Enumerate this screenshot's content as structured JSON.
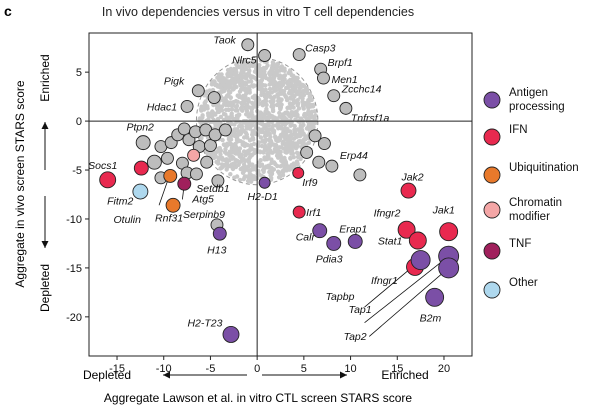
{
  "panel_letter": "c",
  "chart_data": {
    "type": "scatter",
    "title": "In vivo dependencies versus in vitro T cell dependencies",
    "xlabel": "Aggregate Lawson et al. in vitro CTL screen STARS score",
    "ylabel": "Aggregate in vivo screen STARS score",
    "xlim": [
      -18,
      23
    ],
    "ylim": [
      -24,
      9
    ],
    "xticks": [
      -15,
      -10,
      -5,
      0,
      5,
      10,
      15,
      20
    ],
    "yticks": [
      5,
      0,
      -5,
      -10,
      -15,
      -20
    ],
    "x_direction_labels": {
      "left": "Depleted",
      "right": "Enriched"
    },
    "y_direction_labels": {
      "top": "Enriched",
      "bottom": "Depleted"
    },
    "categories": [
      {
        "key": "antigen",
        "label": "Antigen processing",
        "color": "#7B4FA6"
      },
      {
        "key": "ifn",
        "label": "IFN",
        "color": "#E8294F"
      },
      {
        "key": "ubiq",
        "label": "Ubiquitination",
        "color": "#E8792B"
      },
      {
        "key": "chromatin",
        "label": "Chromatin modifier",
        "color": "#F4A6A6"
      },
      {
        "key": "tnf",
        "label": "TNF",
        "color": "#A0205C"
      },
      {
        "key": "other",
        "label": "Other",
        "color": "#AED8EE"
      }
    ],
    "neutral_color": "#BDBDBD",
    "points": [
      {
        "label": "Taok",
        "x": -1,
        "y": 7.8,
        "cat": "none",
        "size": 12
      },
      {
        "label": "Nlrc5",
        "x": 0.8,
        "y": 6.7,
        "cat": "none",
        "size": 12
      },
      {
        "label": "Casp3",
        "x": 4.5,
        "y": 6.8,
        "cat": "none",
        "size": 12
      },
      {
        "label": "Brpf1",
        "x": 6.8,
        "y": 5.3,
        "cat": "none",
        "size": 12
      },
      {
        "label": "Men1",
        "x": 7.1,
        "y": 4.4,
        "cat": "none",
        "size": 12
      },
      {
        "label": "Zcchc14",
        "x": 8.2,
        "y": 2.6,
        "cat": "none",
        "size": 12
      },
      {
        "label": "Tnfrsf1a",
        "x": 9.5,
        "y": 1.3,
        "cat": "none",
        "size": 12
      },
      {
        "label": "Pigk",
        "x": -6.3,
        "y": 3.1,
        "cat": "none",
        "size": 12
      },
      {
        "label": "Hdac1",
        "x": -7.5,
        "y": 1.5,
        "cat": "none",
        "size": 12
      },
      {
        "label": "",
        "x": -4.6,
        "y": 2.4,
        "cat": "none",
        "size": 12
      },
      {
        "label": "Ptpn2",
        "x": -12.2,
        "y": -2.2,
        "cat": "none",
        "size": 14
      },
      {
        "label": "Socs1",
        "x": -12.4,
        "y": -4.8,
        "cat": "ifn",
        "size": 14
      },
      {
        "label": "",
        "x": -16,
        "y": -6,
        "cat": "ifn",
        "size": 16
      },
      {
        "label": "",
        "x": -11,
        "y": -4.2,
        "cat": "none",
        "size": 14
      },
      {
        "label": "",
        "x": -10.3,
        "y": -2.6,
        "cat": "none",
        "size": 12
      },
      {
        "label": "",
        "x": -9.6,
        "y": -3.8,
        "cat": "none",
        "size": 12
      },
      {
        "label": "",
        "x": -9.2,
        "y": -2.2,
        "cat": "none",
        "size": 12
      },
      {
        "label": "",
        "x": -8.5,
        "y": -1.4,
        "cat": "none",
        "size": 12
      },
      {
        "label": "",
        "x": -7.8,
        "y": -0.8,
        "cat": "none",
        "size": 12
      },
      {
        "label": "",
        "x": -7.3,
        "y": -1.9,
        "cat": "none",
        "size": 12
      },
      {
        "label": "",
        "x": -6.6,
        "y": -1.1,
        "cat": "none",
        "size": 12
      },
      {
        "label": "",
        "x": -6.2,
        "y": -2.6,
        "cat": "none",
        "size": 12
      },
      {
        "label": "",
        "x": -5.5,
        "y": -0.9,
        "cat": "none",
        "size": 12
      },
      {
        "label": "",
        "x": -5,
        "y": -2.5,
        "cat": "none",
        "size": 12
      },
      {
        "label": "",
        "x": -4.5,
        "y": -1.4,
        "cat": "none",
        "size": 12
      },
      {
        "label": "",
        "x": -3.4,
        "y": -0.9,
        "cat": "none",
        "size": 12
      },
      {
        "label": "",
        "x": -8,
        "y": -4.3,
        "cat": "none",
        "size": 12
      },
      {
        "label": "",
        "x": -6.8,
        "y": -3.5,
        "cat": "chromatin",
        "size": 12
      },
      {
        "label": "",
        "x": -7.5,
        "y": -5.3,
        "cat": "none",
        "size": 12
      },
      {
        "label": "",
        "x": -6.5,
        "y": -5.4,
        "cat": "none",
        "size": 12
      },
      {
        "label": "Setdb1",
        "x": -4.2,
        "y": -6.1,
        "cat": "none",
        "size": 12
      },
      {
        "label": "",
        "x": -5.4,
        "y": -4.2,
        "cat": "none",
        "size": 12
      },
      {
        "label": "Fitm2",
        "x": -12.5,
        "y": -7.2,
        "cat": "other",
        "size": 15
      },
      {
        "label": "Otulin",
        "x": -10.3,
        "y": -5.8,
        "cat": "none",
        "size": 12
      },
      {
        "label": "",
        "x": -9.3,
        "y": -5.6,
        "cat": "ubiq",
        "size": 13
      },
      {
        "label": "Rnf31",
        "x": -9,
        "y": -8.6,
        "cat": "ubiq",
        "size": 14
      },
      {
        "label": "Atg5",
        "x": -7.8,
        "y": -6.4,
        "cat": "tnf",
        "size": 13
      },
      {
        "label": "Serpinb9",
        "x": -4.3,
        "y": -10.6,
        "cat": "none",
        "size": 12
      },
      {
        "label": "H13",
        "x": -4,
        "y": -11.5,
        "cat": "antigen",
        "size": 13
      },
      {
        "label": "H2-T23",
        "x": -2.8,
        "y": -21.8,
        "cat": "antigen",
        "size": 16
      },
      {
        "label": "H2-D1",
        "x": 0.8,
        "y": -6.3,
        "cat": "antigen",
        "size": 11
      },
      {
        "label": "Irf9",
        "x": 4.4,
        "y": -5.3,
        "cat": "ifn",
        "size": 11
      },
      {
        "label": "Irf1",
        "x": 4.5,
        "y": -9.3,
        "cat": "ifn",
        "size": 12
      },
      {
        "label": "Erp44",
        "x": 11,
        "y": -5.5,
        "cat": "none",
        "size": 12
      },
      {
        "label": "",
        "x": 6.2,
        "y": -1.5,
        "cat": "none",
        "size": 12
      },
      {
        "label": "",
        "x": 7.2,
        "y": -2.3,
        "cat": "none",
        "size": 12
      },
      {
        "label": "",
        "x": 6.6,
        "y": -4.2,
        "cat": "none",
        "size": 12
      },
      {
        "label": "",
        "x": 8,
        "y": -4.6,
        "cat": "none",
        "size": 12
      },
      {
        "label": "",
        "x": 5.3,
        "y": -3.2,
        "cat": "none",
        "size": 12
      },
      {
        "label": "Calr",
        "x": 6.7,
        "y": -11.2,
        "cat": "antigen",
        "size": 14
      },
      {
        "label": "Pdia3",
        "x": 8.2,
        "y": -12.5,
        "cat": "antigen",
        "size": 14
      },
      {
        "label": "Erap1",
        "x": 10.5,
        "y": -12.3,
        "cat": "antigen",
        "size": 14
      },
      {
        "label": "Jak2",
        "x": 16.2,
        "y": -7.1,
        "cat": "ifn",
        "size": 15
      },
      {
        "label": "Ifngr2",
        "x": 16,
        "y": -11.1,
        "cat": "ifn",
        "size": 17
      },
      {
        "label": "Stat1",
        "x": 17.2,
        "y": -12.2,
        "cat": "ifn",
        "size": 17
      },
      {
        "label": "Ifngr1",
        "x": 16.9,
        "y": -14.9,
        "cat": "ifn",
        "size": 17
      },
      {
        "label": "Jak1",
        "x": 20.5,
        "y": -11.3,
        "cat": "ifn",
        "size": 18
      },
      {
        "label": "Tapbp",
        "x": 17.5,
        "y": -14.2,
        "cat": "antigen",
        "size": 19
      },
      {
        "label": "Tap1",
        "x": 20.5,
        "y": -13.8,
        "cat": "antigen",
        "size": 20
      },
      {
        "label": "Tap2",
        "x": 20.5,
        "y": -15,
        "cat": "antigen",
        "size": 20
      },
      {
        "label": "B2m",
        "x": 19,
        "y": -18,
        "cat": "antigen",
        "size": 18
      }
    ]
  }
}
